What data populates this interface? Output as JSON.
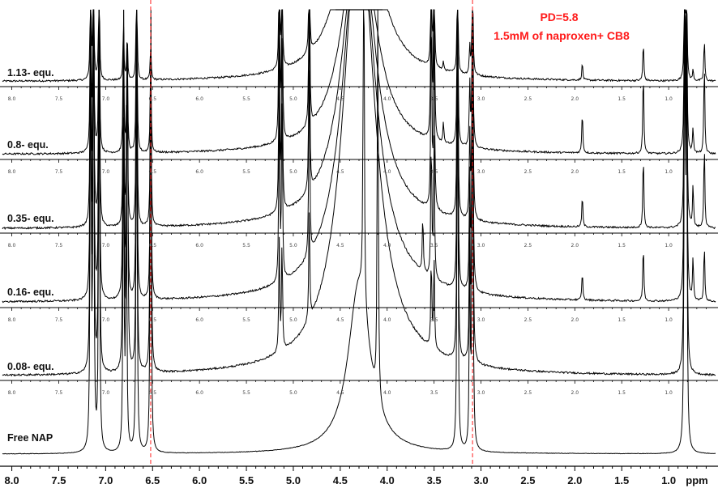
{
  "chart_data": {
    "type": "line",
    "title": "PD=5.8",
    "subtitle": "1.5mM of naproxen+ CB8",
    "xlabel": "ppm",
    "xlim": [
      8.1,
      0.5
    ],
    "x_reversed": true,
    "x_ticks": [
      "8.0",
      "7.5",
      "7.0",
      "6.5",
      "6.0",
      "5.5",
      "5.0",
      "4.5",
      "4.0",
      "3.5",
      "3.0",
      "2.5",
      "2.0",
      "1.5",
      "1.0"
    ],
    "inner_ticks": [
      "8.0",
      "7.5",
      "7.0",
      "6.5",
      "6.0",
      "5.5",
      "5.0",
      "4.5",
      "4.0",
      "3.5",
      "3.0",
      "2.5",
      "2.0",
      "1.5",
      "1.0"
    ],
    "reference_lines_ppm": [
      6.52,
      3.09
    ],
    "series": [
      {
        "name": "1.13- equ.",
        "peaks": [
          {
            "ppm": 7.16,
            "h": 1.0
          },
          {
            "ppm": 7.13,
            "h": 1.0
          },
          {
            "ppm": 7.07,
            "h": 1.0
          },
          {
            "ppm": 6.81,
            "h": 0.8
          },
          {
            "ppm": 6.77,
            "h": 0.65
          },
          {
            "ppm": 6.67,
            "h": 1.0
          },
          {
            "ppm": 6.52,
            "h": 0.5
          },
          {
            "ppm": 5.15,
            "h": 1.0
          },
          {
            "ppm": 5.12,
            "h": 1.0
          },
          {
            "ppm": 4.83,
            "h": 1.0
          },
          {
            "ppm": 3.53,
            "h": 1.0
          },
          {
            "ppm": 3.5,
            "h": 1.0
          },
          {
            "ppm": 3.4,
            "h": 0.12
          },
          {
            "ppm": 3.25,
            "h": 1.0
          },
          {
            "ppm": 3.12,
            "h": 0.4
          },
          {
            "ppm": 3.09,
            "h": 1.0
          },
          {
            "ppm": 1.92,
            "h": 0.25
          },
          {
            "ppm": 1.27,
            "h": 0.55
          },
          {
            "ppm": 0.83,
            "h": 1.0
          },
          {
            "ppm": 0.81,
            "h": 1.0
          },
          {
            "ppm": 0.74,
            "h": 0.15
          },
          {
            "ppm": 0.62,
            "h": 0.6
          }
        ]
      },
      {
        "name": "0.8- equ.",
        "peaks": [
          {
            "ppm": 7.16,
            "h": 1.0
          },
          {
            "ppm": 7.13,
            "h": 1.0
          },
          {
            "ppm": 7.07,
            "h": 1.0
          },
          {
            "ppm": 6.81,
            "h": 0.9
          },
          {
            "ppm": 6.77,
            "h": 0.75
          },
          {
            "ppm": 6.67,
            "h": 1.0
          },
          {
            "ppm": 6.52,
            "h": 0.7
          },
          {
            "ppm": 5.15,
            "h": 1.0
          },
          {
            "ppm": 5.12,
            "h": 1.0
          },
          {
            "ppm": 4.83,
            "h": 1.0
          },
          {
            "ppm": 3.53,
            "h": 1.0
          },
          {
            "ppm": 3.5,
            "h": 1.0
          },
          {
            "ppm": 3.4,
            "h": 0.15
          },
          {
            "ppm": 3.25,
            "h": 1.0
          },
          {
            "ppm": 3.12,
            "h": 0.45
          },
          {
            "ppm": 3.09,
            "h": 1.0
          },
          {
            "ppm": 1.92,
            "h": 0.3
          },
          {
            "ppm": 1.27,
            "h": 0.6
          },
          {
            "ppm": 0.83,
            "h": 1.0
          },
          {
            "ppm": 0.81,
            "h": 1.0
          },
          {
            "ppm": 0.74,
            "h": 0.18
          },
          {
            "ppm": 0.62,
            "h": 0.65
          }
        ]
      },
      {
        "name": "0.35- equ.",
        "peaks": [
          {
            "ppm": 7.16,
            "h": 1.0
          },
          {
            "ppm": 7.13,
            "h": 1.0
          },
          {
            "ppm": 7.07,
            "h": 1.0
          },
          {
            "ppm": 6.81,
            "h": 0.9
          },
          {
            "ppm": 6.77,
            "h": 0.8
          },
          {
            "ppm": 6.67,
            "h": 1.0
          },
          {
            "ppm": 6.52,
            "h": 0.8
          },
          {
            "ppm": 5.15,
            "h": 0.85
          },
          {
            "ppm": 5.12,
            "h": 0.85
          },
          {
            "ppm": 4.83,
            "h": 0.9
          },
          {
            "ppm": 3.53,
            "h": 0.95
          },
          {
            "ppm": 3.5,
            "h": 0.95
          },
          {
            "ppm": 3.25,
            "h": 1.0
          },
          {
            "ppm": 3.12,
            "h": 0.4
          },
          {
            "ppm": 3.09,
            "h": 1.0
          },
          {
            "ppm": 1.92,
            "h": 0.15
          },
          {
            "ppm": 1.27,
            "h": 0.35
          },
          {
            "ppm": 0.83,
            "h": 1.0
          },
          {
            "ppm": 0.81,
            "h": 1.0
          },
          {
            "ppm": 0.74,
            "h": 0.2
          },
          {
            "ppm": 0.62,
            "h": 0.4
          }
        ]
      },
      {
        "name": "0.16- equ.",
        "peaks": [
          {
            "ppm": 7.16,
            "h": 1.0
          },
          {
            "ppm": 7.13,
            "h": 1.0
          },
          {
            "ppm": 7.07,
            "h": 1.0
          },
          {
            "ppm": 6.81,
            "h": 1.0
          },
          {
            "ppm": 6.77,
            "h": 0.9
          },
          {
            "ppm": 6.67,
            "h": 1.0
          },
          {
            "ppm": 6.52,
            "h": 0.9
          },
          {
            "ppm": 5.15,
            "h": 0.65
          },
          {
            "ppm": 5.12,
            "h": 0.65
          },
          {
            "ppm": 4.83,
            "h": 0.7
          },
          {
            "ppm": 3.62,
            "h": 0.2
          },
          {
            "ppm": 3.53,
            "h": 0.5
          },
          {
            "ppm": 3.5,
            "h": 0.5
          },
          {
            "ppm": 3.25,
            "h": 1.0
          },
          {
            "ppm": 3.12,
            "h": 0.4
          },
          {
            "ppm": 3.09,
            "h": 1.0
          },
          {
            "ppm": 1.92,
            "h": 0.1
          },
          {
            "ppm": 1.27,
            "h": 0.2
          },
          {
            "ppm": 0.83,
            "h": 1.0
          },
          {
            "ppm": 0.81,
            "h": 1.0
          },
          {
            "ppm": 0.74,
            "h": 0.15
          },
          {
            "ppm": 0.62,
            "h": 0.2
          }
        ]
      },
      {
        "name": "0.08- equ.",
        "peaks": [
          {
            "ppm": 7.16,
            "h": 1.0
          },
          {
            "ppm": 7.13,
            "h": 1.0
          },
          {
            "ppm": 7.07,
            "h": 1.0
          },
          {
            "ppm": 6.81,
            "h": 1.0
          },
          {
            "ppm": 6.77,
            "h": 1.0
          },
          {
            "ppm": 6.67,
            "h": 1.0
          },
          {
            "ppm": 6.52,
            "h": 1.0
          },
          {
            "ppm": 5.15,
            "h": 0.3
          },
          {
            "ppm": 5.12,
            "h": 0.3
          },
          {
            "ppm": 4.83,
            "h": 0.32
          },
          {
            "ppm": 3.53,
            "h": 0.25
          },
          {
            "ppm": 3.5,
            "h": 0.25
          },
          {
            "ppm": 3.25,
            "h": 1.0
          },
          {
            "ppm": 3.12,
            "h": 0.4
          },
          {
            "ppm": 3.09,
            "h": 1.0
          },
          {
            "ppm": 0.83,
            "h": 1.0
          },
          {
            "ppm": 0.81,
            "h": 1.0
          }
        ]
      },
      {
        "name": "Free NAP",
        "peaks": [
          {
            "ppm": 7.16,
            "h": 1.0
          },
          {
            "ppm": 7.13,
            "h": 1.0
          },
          {
            "ppm": 7.07,
            "h": 1.0
          },
          {
            "ppm": 6.81,
            "h": 0.8
          },
          {
            "ppm": 6.78,
            "h": 0.75
          },
          {
            "ppm": 6.67,
            "h": 1.0
          },
          {
            "ppm": 6.52,
            "h": 1.0
          },
          {
            "ppm": 4.25,
            "h": 1.0
          },
          {
            "ppm": 4.1,
            "h": 1.0
          },
          {
            "ppm": 3.25,
            "h": 1.0
          },
          {
            "ppm": 3.12,
            "h": 0.45
          },
          {
            "ppm": 3.09,
            "h": 1.0
          },
          {
            "ppm": 0.83,
            "h": 1.0
          },
          {
            "ppm": 0.81,
            "h": 1.0
          }
        ]
      }
    ]
  }
}
